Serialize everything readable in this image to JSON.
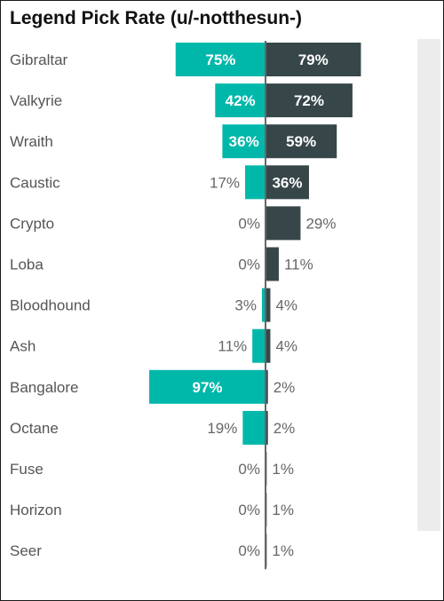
{
  "chart_data": {
    "type": "bar",
    "title": "Legend Pick Rate (u/-notthesun-)",
    "categories": [
      "Gibraltar",
      "Valkyrie",
      "Wraith",
      "Caustic",
      "Crypto",
      "Loba",
      "Bloodhound",
      "Ash",
      "Bangalore",
      "Octane",
      "Fuse",
      "Horizon",
      "Seer"
    ],
    "series": [
      {
        "values": [
          75,
          42,
          36,
          17,
          0,
          0,
          3,
          11,
          97,
          19,
          0,
          0,
          0
        ],
        "color": "#00b8aa",
        "direction": "left"
      },
      {
        "values": [
          79,
          72,
          59,
          36,
          29,
          11,
          4,
          4,
          2,
          2,
          1,
          1,
          1
        ],
        "color": "#374649",
        "direction": "right"
      }
    ],
    "value_suffix": "%",
    "xlim": [
      0,
      100
    ],
    "grid": false,
    "legend": "none",
    "axis_color": "#666666"
  }
}
